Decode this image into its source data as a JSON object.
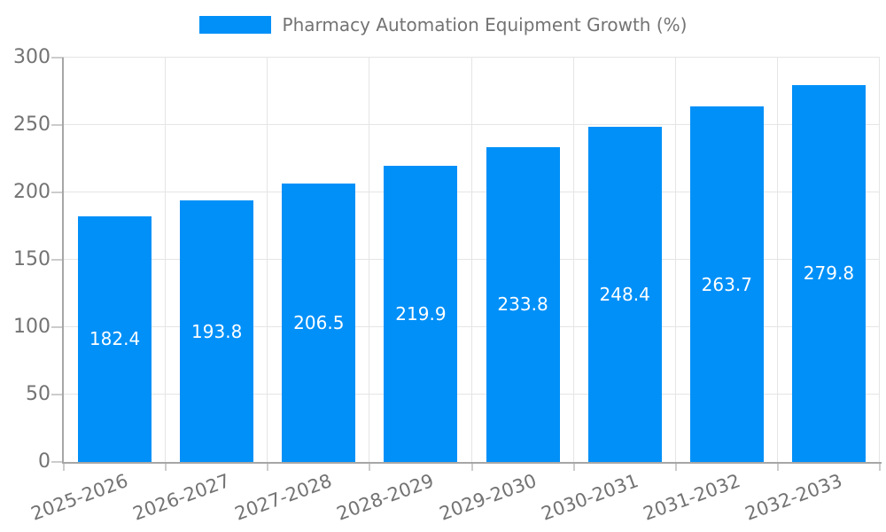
{
  "chart_data": {
    "type": "bar",
    "title": "Pharmacy Automation Equipment Growth (%)",
    "categories": [
      "2025-2026",
      "2026-2027",
      "2027-2028",
      "2028-2029",
      "2029-2030",
      "2030-2031",
      "2031-2032",
      "2032-2033"
    ],
    "values": [
      182.4,
      193.8,
      206.5,
      219.9,
      233.8,
      248.4,
      263.7,
      279.8
    ],
    "yticks": [
      0,
      50,
      100,
      150,
      200,
      250,
      300
    ],
    "ylim": [
      0,
      300
    ],
    "xlabel": "",
    "ylabel": "",
    "grid": true,
    "legend_position": "top-center",
    "value_labels": "centered-inside-bars",
    "colors": {
      "bar": "#0090f8",
      "value_label": "#ffffff",
      "axis": "#a6a6a6",
      "gridline": "#e5e5e5",
      "tick_mark": "#cccccc",
      "text": "#737373",
      "background": "#ffffff"
    }
  }
}
